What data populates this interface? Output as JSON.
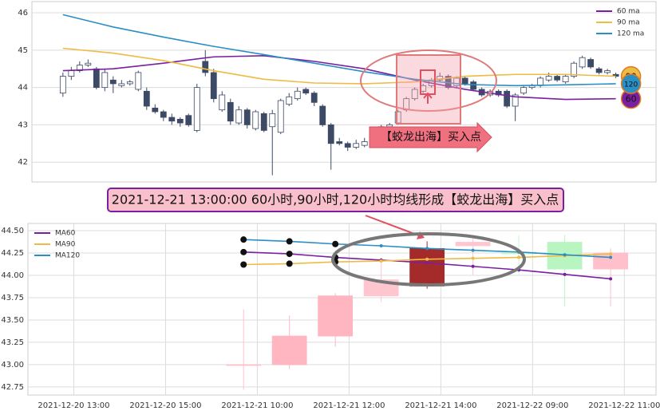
{
  "chart_data": [
    {
      "type": "candlestick",
      "ohlc": [
        [
          43.85,
          44.4,
          43.75,
          44.3
        ],
        [
          44.3,
          44.55,
          44.2,
          44.45
        ],
        [
          44.45,
          44.7,
          44.4,
          44.6
        ],
        [
          44.6,
          44.75,
          44.55,
          44.65
        ],
        [
          44.5,
          44.55,
          43.95,
          44.0
        ],
        [
          44.0,
          44.5,
          43.9,
          44.4
        ],
        [
          44.2,
          44.3,
          43.85,
          44.1
        ],
        [
          44.05,
          44.2,
          44.0,
          44.1
        ],
        [
          44.1,
          44.2,
          44.05,
          44.15
        ],
        [
          43.95,
          44.45,
          43.9,
          44.4
        ],
        [
          43.9,
          44.0,
          43.4,
          43.5
        ],
        [
          43.45,
          43.55,
          43.3,
          43.35
        ],
        [
          43.35,
          43.4,
          43.1,
          43.2
        ],
        [
          43.2,
          43.3,
          43.0,
          43.1
        ],
        [
          43.15,
          43.2,
          42.95,
          43.05
        ],
        [
          43.25,
          43.3,
          42.95,
          43.0
        ],
        [
          42.85,
          44.1,
          42.8,
          44.0
        ],
        [
          44.7,
          45.0,
          44.3,
          44.4
        ],
        [
          44.4,
          44.5,
          43.6,
          43.7
        ],
        [
          43.4,
          43.9,
          43.35,
          43.8
        ],
        [
          43.6,
          43.7,
          43.0,
          43.1
        ],
        [
          43.05,
          43.5,
          43.0,
          43.4
        ],
        [
          43.4,
          43.45,
          42.9,
          43.0
        ],
        [
          42.9,
          43.4,
          42.85,
          43.35
        ],
        [
          43.3,
          43.35,
          42.8,
          42.85
        ],
        [
          42.95,
          43.4,
          41.65,
          43.3
        ],
        [
          42.8,
          43.7,
          42.75,
          43.65
        ],
        [
          43.55,
          43.85,
          43.5,
          43.75
        ],
        [
          43.7,
          44.0,
          43.65,
          43.9
        ],
        [
          43.95,
          44.0,
          43.8,
          43.85
        ],
        [
          43.85,
          43.9,
          43.5,
          43.6
        ],
        [
          43.5,
          43.55,
          42.95,
          43.0
        ],
        [
          43.0,
          43.05,
          41.8,
          42.5
        ],
        [
          42.55,
          42.65,
          42.45,
          42.5
        ],
        [
          42.5,
          42.55,
          42.3,
          42.4
        ],
        [
          42.4,
          42.6,
          42.35,
          42.5
        ],
        [
          42.45,
          42.65,
          42.4,
          42.55
        ],
        [
          42.5,
          42.9,
          42.45,
          42.85
        ],
        [
          42.9,
          43.0,
          42.85,
          42.95
        ],
        [
          42.95,
          43.05,
          42.9,
          43.0
        ],
        [
          43.05,
          43.4,
          43.0,
          43.35
        ],
        [
          43.4,
          43.75,
          43.35,
          43.7
        ],
        [
          43.7,
          44.0,
          43.65,
          43.95
        ],
        [
          43.9,
          44.1,
          43.85,
          44.05
        ],
        [
          44.05,
          44.25,
          44.0,
          44.2
        ],
        [
          44.2,
          44.4,
          44.15,
          44.3
        ],
        [
          44.3,
          44.35,
          43.95,
          44.0
        ],
        [
          44.05,
          44.3,
          44.0,
          44.25
        ],
        [
          44.25,
          44.3,
          44.05,
          44.1
        ],
        [
          44.15,
          44.2,
          43.9,
          43.95
        ],
        [
          43.95,
          44.0,
          43.75,
          43.8
        ],
        [
          43.8,
          43.95,
          43.75,
          43.9
        ],
        [
          43.9,
          43.95,
          43.75,
          43.8
        ],
        [
          43.9,
          43.95,
          43.45,
          43.5
        ],
        [
          43.5,
          43.85,
          43.1,
          43.8
        ],
        [
          43.85,
          44.05,
          43.8,
          44.0
        ],
        [
          44.0,
          44.1,
          43.95,
          44.05
        ],
        [
          44.05,
          44.3,
          44.0,
          44.25
        ],
        [
          44.2,
          44.4,
          44.15,
          44.3
        ],
        [
          44.3,
          44.35,
          44.15,
          44.2
        ],
        [
          44.15,
          44.35,
          44.1,
          44.3
        ],
        [
          44.3,
          44.7,
          44.25,
          44.65
        ],
        [
          44.55,
          44.85,
          44.5,
          44.8
        ],
        [
          44.75,
          44.8,
          44.5,
          44.55
        ],
        [
          44.5,
          44.55,
          44.35,
          44.4
        ],
        [
          44.4,
          44.5,
          44.35,
          44.45
        ],
        [
          44.35,
          44.4,
          44.25,
          44.3
        ],
        [
          44.3,
          44.35,
          44.2,
          44.25
        ]
      ],
      "up_color": "#ffffff",
      "down_color": "#3d4a66",
      "edge_color": "#3d4a66",
      "xlim": [
        -3.7,
        70.8
      ],
      "ylim": [
        41.47,
        46.3
      ],
      "yticks": [
        42,
        43,
        44,
        45,
        46
      ],
      "grid": true,
      "legend": "upper right",
      "lines": [
        {
          "name": "60 ma",
          "color": "#7a1fa2",
          "badge": "60",
          "x": [
            0,
            6,
            12,
            18,
            24,
            30,
            36,
            42,
            48,
            54,
            60,
            66
          ],
          "values": [
            44.45,
            44.5,
            44.65,
            44.82,
            44.85,
            44.7,
            44.5,
            44.2,
            43.95,
            43.75,
            43.68,
            43.7
          ]
        },
        {
          "name": "90 ma",
          "color": "#eebb44",
          "badge": "90",
          "x": [
            0,
            6,
            12,
            18,
            24,
            30,
            36,
            42,
            48,
            54,
            60,
            66
          ],
          "values": [
            45.05,
            44.92,
            44.72,
            44.45,
            44.22,
            44.12,
            44.1,
            44.15,
            44.3,
            44.35,
            44.35,
            44.3
          ]
        },
        {
          "name": "120 ma",
          "color": "#2a8fc4",
          "badge": "120",
          "x": [
            0,
            6,
            12,
            18,
            24,
            30,
            36,
            42,
            48,
            54,
            60,
            66
          ],
          "values": [
            45.95,
            45.62,
            45.35,
            45.1,
            44.88,
            44.65,
            44.42,
            44.22,
            44.08,
            44.05,
            44.07,
            44.1
          ]
        }
      ]
    },
    {
      "type": "candlestick",
      "x": [
        4.7,
        5.7,
        6.7,
        7.7,
        8.7,
        9.7,
        10.7,
        11.7,
        12.7
      ],
      "ohlc": [
        [
          43.0,
          43.62,
          42.72,
          43.0
        ],
        [
          43.0,
          43.55,
          42.95,
          43.32
        ],
        [
          43.32,
          43.8,
          43.2,
          43.77
        ],
        [
          43.77,
          44.2,
          43.7,
          43.95
        ],
        [
          43.88,
          44.38,
          43.85,
          44.3
        ],
        [
          44.33,
          44.42,
          44.0,
          44.37
        ],
        [
          44.26,
          44.45,
          44.0,
          44.24
        ],
        [
          44.37,
          44.45,
          43.65,
          44.07
        ],
        [
          44.07,
          44.3,
          43.65,
          44.25
        ]
      ],
      "colors": [
        "#ffc0cb",
        "#ffb6c1",
        "#ffb6c1",
        "#ffc6d0",
        "#a52a2a",
        "#ffc6d0",
        "#c8f7cc",
        "#b8f5c0",
        "#ffc0cb"
      ],
      "xlim": [
        0,
        13.69
      ],
      "xticks": [
        {
          "value": 1,
          "label": "2021-12-20 13:00"
        },
        {
          "value": 3,
          "label": "2021-12-20 15:00"
        },
        {
          "value": 5,
          "label": "2021-12-21 10:00"
        },
        {
          "value": 7,
          "label": "2021-12-21 12:00"
        },
        {
          "value": 9,
          "label": "2021-12-21 14:00"
        },
        {
          "value": 11,
          "label": "2021-12-22 09:00"
        },
        {
          "value": 13,
          "label": "2021-12-22 11:00"
        }
      ],
      "ylim": [
        42.66,
        44.58
      ],
      "yticks": [
        42.75,
        {
          "value": 43,
          "label": "43.00"
        },
        43.25,
        {
          "value": 43.5,
          "label": "43.50"
        },
        43.75,
        {
          "value": 44,
          "label": "44.00"
        },
        44.25,
        {
          "value": 44.5,
          "label": "44.50"
        }
      ],
      "grid": true,
      "legend": "upper left",
      "lines": [
        {
          "name": "MA60",
          "color": "#7a1fa2",
          "x": [
            4.7,
            5.7,
            6.7,
            7.7,
            8.7,
            9.7,
            10.7,
            11.7,
            12.7
          ],
          "values": [
            44.26,
            44.24,
            44.2,
            44.17,
            44.14,
            44.1,
            44.06,
            44.01,
            43.96
          ]
        },
        {
          "name": "MA90",
          "color": "#eebb44",
          "x": [
            4.7,
            5.7,
            6.7,
            7.7,
            8.7,
            9.7,
            10.7,
            11.7,
            12.7
          ],
          "values": [
            44.12,
            44.13,
            44.15,
            44.16,
            44.18,
            44.19,
            44.2,
            44.22,
            44.24
          ]
        },
        {
          "name": "MA120",
          "color": "#2a8fc4",
          "x": [
            4.7,
            5.7,
            6.7,
            7.7,
            8.7,
            9.7,
            10.7,
            11.7,
            12.7
          ],
          "values": [
            44.4,
            44.38,
            44.35,
            44.33,
            44.3,
            44.28,
            44.26,
            44.23,
            44.2
          ]
        }
      ]
    }
  ],
  "annotation": "2021-12-21 13:00:00 60小时,90小时,120小时均线形成【蛟龙出海】买入点",
  "signal_label": "【蛟龙出海】买入点"
}
